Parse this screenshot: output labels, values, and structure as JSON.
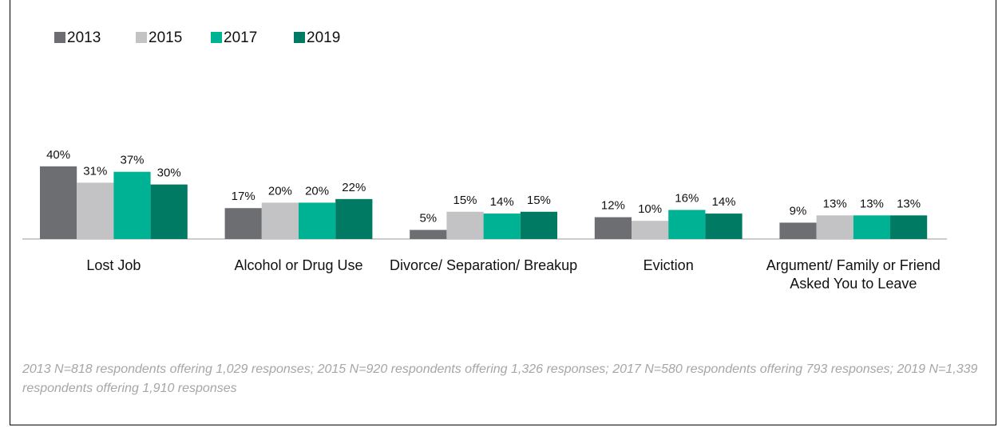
{
  "chart_data": {
    "type": "bar",
    "categories": [
      "Lost Job",
      "Alcohol or Drug Use",
      "Divorce/ Separation/ Breakup",
      "Eviction",
      "Argument/ Family or Friend Asked You to Leave"
    ],
    "series": [
      {
        "name": "2013",
        "color": "#6d6e71",
        "values": [
          40,
          17,
          5,
          12,
          9
        ],
        "value_labels": [
          "40%",
          "17%",
          "5%",
          "12%",
          "9%"
        ]
      },
      {
        "name": "2015",
        "color": "#c3c3c5",
        "values": [
          31,
          20,
          15,
          10,
          13
        ],
        "value_labels": [
          "31%",
          "20%",
          "15%",
          "10%",
          "13%"
        ]
      },
      {
        "name": "2017",
        "color": "#00b294",
        "values": [
          37,
          20,
          14,
          16,
          13
        ],
        "value_labels": [
          "37%",
          "20%",
          "14%",
          "16%",
          "13%"
        ]
      },
      {
        "name": "2019",
        "color": "#007a63",
        "values": [
          30,
          22,
          15,
          14,
          13
        ],
        "value_labels": [
          "30%",
          "22%",
          "15%",
          "14%",
          "13%"
        ]
      }
    ],
    "legend": "top-left",
    "note": "2013 N=818 respondents offering 1,029 responses; 2015 N=920 respondents offering 1,326 responses; 2017 N=580 respondents offering 793 responses; 2019 N=1,339 respondents offering 1,910 responses"
  }
}
